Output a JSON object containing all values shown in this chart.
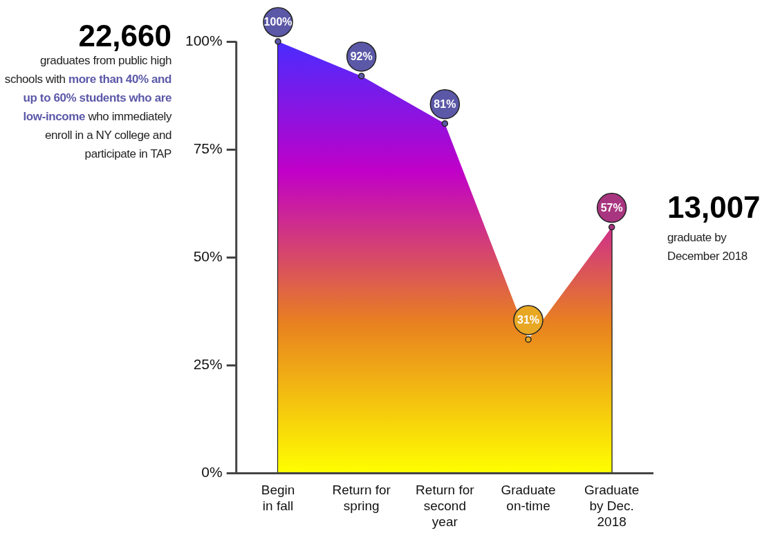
{
  "chart_data": {
    "type": "area",
    "categories": [
      "Begin\nin fall",
      "Return for\nspring",
      "Return for\nsecond\nyear",
      "Graduate\non-time",
      "Graduate\nby Dec.\n2018"
    ],
    "series": [
      {
        "values": [
          100,
          92,
          81,
          31,
          57
        ],
        "colors": [
          "#5b58a8",
          "#5b58a8",
          "#5b58a8",
          "#e8a824",
          "#a8357f"
        ],
        "value_labels": [
          "100%",
          "92%",
          "81%",
          "31%",
          "57%"
        ]
      }
    ],
    "ylim": [
      0,
      100
    ],
    "yticks": [
      {
        "value": 0,
        "label": "0%"
      },
      {
        "value": 25,
        "label": "25%"
      },
      {
        "value": 50,
        "label": "50%"
      },
      {
        "value": 75,
        "label": "75%"
      },
      {
        "value": 100,
        "label": "100%"
      }
    ],
    "marker": "circle",
    "grid": "x",
    "annotations": [
      "22,660",
      "graduates from public high schools with",
      "more than 40% and up to 60% students who are low-income",
      "who immediately enroll in a NY college and participate in TAP",
      "13,007",
      "graduate by December 2018"
    ]
  }
}
